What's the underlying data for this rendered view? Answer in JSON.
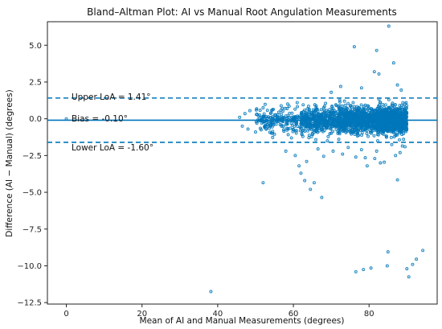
{
  "chart_data": {
    "type": "scatter",
    "title": "Bland–Altman Plot: AI vs Manual Root Angulation Measurements",
    "xlabel": "Mean of AI and Manual Measurements (degrees)",
    "ylabel": "Difference (AI − Manual) (degrees)",
    "xlim": [
      -5,
      98
    ],
    "ylim": [
      -12.6,
      6.6
    ],
    "xticks": [
      0,
      20,
      40,
      60,
      80
    ],
    "xtick_labels": [
      "0",
      "20",
      "40",
      "60",
      "80"
    ],
    "yticks": [
      5.0,
      2.5,
      0.0,
      -2.5,
      -5.0,
      -7.5,
      -10.0,
      -12.5
    ],
    "ytick_labels": [
      "5.0",
      "2.5",
      "0.0",
      "−2.5",
      "−5.0",
      "−7.5",
      "−10.0",
      "−12.5"
    ],
    "grid": false,
    "colors": {
      "points": "#0077bb",
      "lines": "#0077bb"
    },
    "lines": {
      "bias": {
        "value": -0.1,
        "label": "Bias = -0.10°",
        "style": "solid"
      },
      "upper_loa": {
        "value": 1.41,
        "label": "Upper LoA = 1.41°",
        "style": "dashed"
      },
      "lower_loa": {
        "value": -1.6,
        "label": "Lower LoA = -1.60°",
        "style": "dashed"
      }
    },
    "series": [
      {
        "points": [
          [
            0.0,
            0.0
          ],
          [
            38.2,
            -11.75
          ],
          [
            76.5,
            -10.4
          ],
          [
            78.5,
            -10.25
          ],
          [
            80.5,
            -10.15
          ],
          [
            84.8,
            -10.0
          ],
          [
            85.0,
            -9.05
          ],
          [
            90.0,
            -10.2
          ],
          [
            90.5,
            -10.75
          ],
          [
            91.5,
            -9.9
          ],
          [
            92.5,
            -9.55
          ],
          [
            94.2,
            -8.95
          ],
          [
            76.1,
            4.9
          ],
          [
            82.0,
            4.65
          ],
          [
            85.2,
            6.3
          ],
          [
            86.5,
            3.8
          ],
          [
            87.5,
            2.3
          ],
          [
            88.5,
            1.95
          ],
          [
            81.4,
            3.2
          ],
          [
            82.6,
            3.05
          ],
          [
            78.0,
            2.1
          ],
          [
            72.5,
            2.2
          ],
          [
            70.0,
            1.8
          ],
          [
            73.5,
            1.2
          ],
          [
            75.8,
            1.1
          ],
          [
            64.0,
            0.85
          ],
          [
            66.0,
            0.75
          ],
          [
            68.5,
            1.05
          ],
          [
            52.0,
            0.75
          ],
          [
            50.2,
            0.6
          ],
          [
            58.5,
            1.0
          ],
          [
            61.0,
            1.1
          ],
          [
            47.2,
            0.35
          ],
          [
            45.8,
            0.1
          ],
          [
            48.5,
            0.55
          ],
          [
            46.5,
            -0.5
          ],
          [
            48.0,
            -0.7
          ],
          [
            50.0,
            -0.9
          ],
          [
            52.5,
            -0.55
          ],
          [
            55.0,
            -1.05
          ],
          [
            57.5,
            -0.85
          ],
          [
            59.5,
            -1.3
          ],
          [
            62.5,
            -1.2
          ],
          [
            65.0,
            -1.0
          ],
          [
            69.0,
            -1.5
          ],
          [
            72.0,
            -1.4
          ],
          [
            52.0,
            -4.35
          ],
          [
            58.0,
            -2.2
          ],
          [
            60.5,
            -2.5
          ],
          [
            61.5,
            -3.2
          ],
          [
            62.0,
            -3.7
          ],
          [
            63.0,
            -4.2
          ],
          [
            64.5,
            -4.8
          ],
          [
            65.5,
            -4.35
          ],
          [
            63.5,
            -2.9
          ],
          [
            66.5,
            -2.05
          ],
          [
            68.0,
            -2.55
          ],
          [
            70.5,
            -2.2
          ],
          [
            73.0,
            -2.4
          ],
          [
            74.5,
            -1.95
          ],
          [
            76.5,
            -2.6
          ],
          [
            78.0,
            -2.1
          ],
          [
            79.5,
            -3.2
          ],
          [
            81.5,
            -2.7
          ],
          [
            83.0,
            -3.0
          ],
          [
            84.0,
            -2.95
          ],
          [
            87.0,
            -2.5
          ],
          [
            88.2,
            -2.3
          ],
          [
            89.5,
            -1.9
          ],
          [
            87.5,
            -4.15
          ],
          [
            67.5,
            -5.35
          ],
          [
            79.0,
            -2.65
          ],
          [
            82.0,
            -2.2
          ],
          [
            86.0,
            -1.75
          ],
          [
            88.8,
            -1.85
          ]
        ]
      }
    ]
  }
}
